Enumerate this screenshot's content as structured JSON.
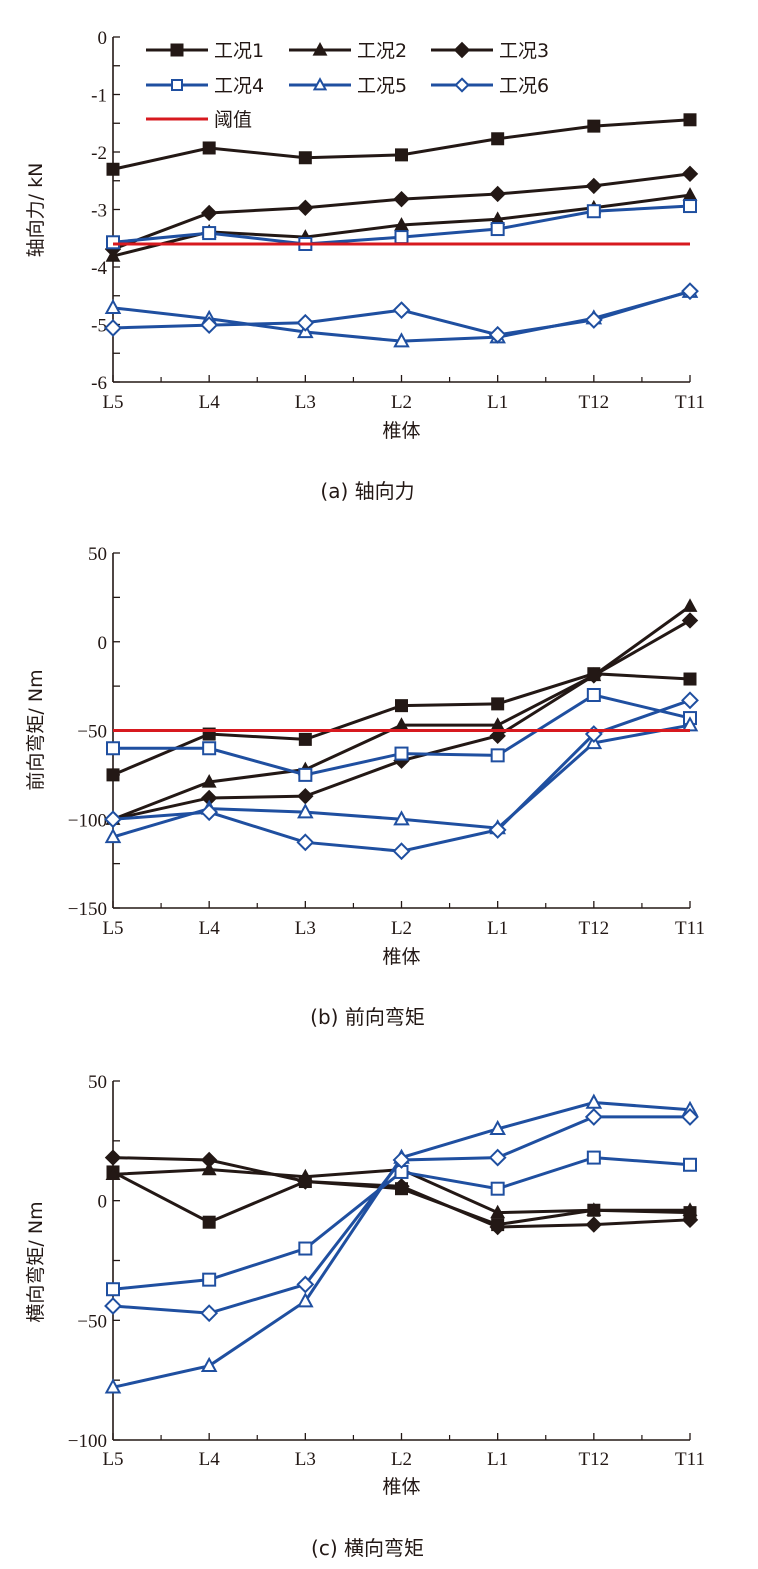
{
  "colors": {
    "black_series": "#231815",
    "blue_series": "#1f4fa0",
    "threshold": "#d7191f",
    "axis": "#231815"
  },
  "legend": {
    "items": [
      {
        "label": "工况1",
        "marker": "square-filled",
        "color": "#231815"
      },
      {
        "label": "工况2",
        "marker": "triangle-filled",
        "color": "#231815"
      },
      {
        "label": "工况3",
        "marker": "diamond-filled",
        "color": "#231815"
      },
      {
        "label": "工况4",
        "marker": "square-open",
        "color": "#1f4fa0"
      },
      {
        "label": "工况5",
        "marker": "triangle-open",
        "color": "#1f4fa0"
      },
      {
        "label": "工况6",
        "marker": "diamond-open",
        "color": "#1f4fa0"
      },
      {
        "label": "阈值",
        "marker": "line",
        "color": "#d7191f"
      }
    ]
  },
  "chart_data": [
    {
      "type": "line",
      "caption": "(a)  轴向力",
      "title": "",
      "xlabel": "椎体",
      "ylabel": "轴向力/ kN",
      "categories": [
        "L5",
        "L4",
        "L3",
        "L2",
        "L1",
        "T12",
        "T11"
      ],
      "ylim": [
        -6,
        0
      ],
      "yticks": [
        0,
        -1,
        -2,
        -3,
        -4,
        -5,
        -6
      ],
      "ytick_labels": [
        "0",
        "-1",
        "-2",
        "-3",
        "-4",
        "-5",
        "-6"
      ],
      "legend_position": "top-left",
      "grid": false,
      "threshold": -3.6,
      "series": [
        {
          "name": "工况1",
          "values": [
            -2.3,
            -1.93,
            -2.1,
            -2.05,
            -1.77,
            -1.55,
            -1.44
          ]
        },
        {
          "name": "工况2",
          "values": [
            -3.81,
            -3.39,
            -3.48,
            -3.27,
            -3.17,
            -2.97,
            -2.75
          ]
        },
        {
          "name": "工况3",
          "values": [
            -3.69,
            -3.06,
            -2.97,
            -2.82,
            -2.73,
            -2.59,
            -2.38
          ]
        },
        {
          "name": "工况4",
          "values": [
            -3.57,
            -3.41,
            -3.6,
            -3.48,
            -3.34,
            -3.03,
            -2.94
          ]
        },
        {
          "name": "工况5",
          "values": [
            -4.71,
            -4.9,
            -5.13,
            -5.29,
            -5.22,
            -4.89,
            -4.43
          ]
        },
        {
          "name": "工况6",
          "values": [
            -5.06,
            -5.01,
            -4.97,
            -4.75,
            -5.18,
            -4.92,
            -4.42
          ]
        }
      ]
    },
    {
      "type": "line",
      "caption": "(b)  前向弯矩",
      "title": "",
      "xlabel": "椎体",
      "ylabel": "前向弯矩/ Nm",
      "categories": [
        "L5",
        "L4",
        "L3",
        "L2",
        "L1",
        "T12",
        "T11"
      ],
      "ylim": [
        -150,
        50
      ],
      "yticks": [
        50,
        0,
        -50,
        -100,
        -150
      ],
      "ytick_labels": [
        "50",
        "0",
        "−50",
        "−100",
        "−150"
      ],
      "grid": false,
      "threshold": -50,
      "series": [
        {
          "name": "工况1",
          "values": [
            -75,
            -52,
            -55,
            -36,
            -35,
            -18,
            -21
          ]
        },
        {
          "name": "工况2",
          "values": [
            -100,
            -79,
            -72,
            -47,
            -47,
            -19,
            20
          ]
        },
        {
          "name": "工况3",
          "values": [
            -100,
            -88,
            -87,
            -67,
            -53,
            -19,
            12
          ]
        },
        {
          "name": "工况4",
          "values": [
            -60,
            -60,
            -75,
            -63,
            -64,
            -30,
            -43
          ]
        },
        {
          "name": "工况5",
          "values": [
            -110,
            -94,
            -96,
            -100,
            -105,
            -57,
            -47
          ]
        },
        {
          "name": "工况6",
          "values": [
            -100,
            -96,
            -113,
            -118,
            -106,
            -52,
            -33
          ]
        }
      ]
    },
    {
      "type": "line",
      "caption": "(c)  横向弯矩",
      "title": "",
      "xlabel": "椎体",
      "ylabel": "横向弯矩/ Nm",
      "categories": [
        "L5",
        "L4",
        "L3",
        "L2",
        "L1",
        "T12",
        "T11"
      ],
      "ylim": [
        -100,
        50
      ],
      "yticks": [
        50,
        0,
        -50,
        -100
      ],
      "ytick_labels": [
        "50",
        "0",
        "−50",
        "−100"
      ],
      "grid": false,
      "threshold": null,
      "series": [
        {
          "name": "工况1",
          "values": [
            12,
            -9,
            8,
            5,
            -10,
            -4,
            -5
          ]
        },
        {
          "name": "工况2",
          "values": [
            11,
            13,
            10,
            13,
            -5,
            -4,
            -4
          ]
        },
        {
          "name": "工况3",
          "values": [
            18,
            17,
            8,
            6,
            -11,
            -10,
            -8
          ]
        },
        {
          "name": "工况4",
          "values": [
            -37,
            -33,
            -20,
            12,
            5,
            18,
            15
          ]
        },
        {
          "name": "工况5",
          "values": [
            -78,
            -69,
            -42,
            18,
            30,
            41,
            38
          ]
        },
        {
          "name": "工况6",
          "values": [
            -44,
            -47,
            -35,
            17,
            18,
            35,
            35
          ]
        }
      ]
    }
  ]
}
